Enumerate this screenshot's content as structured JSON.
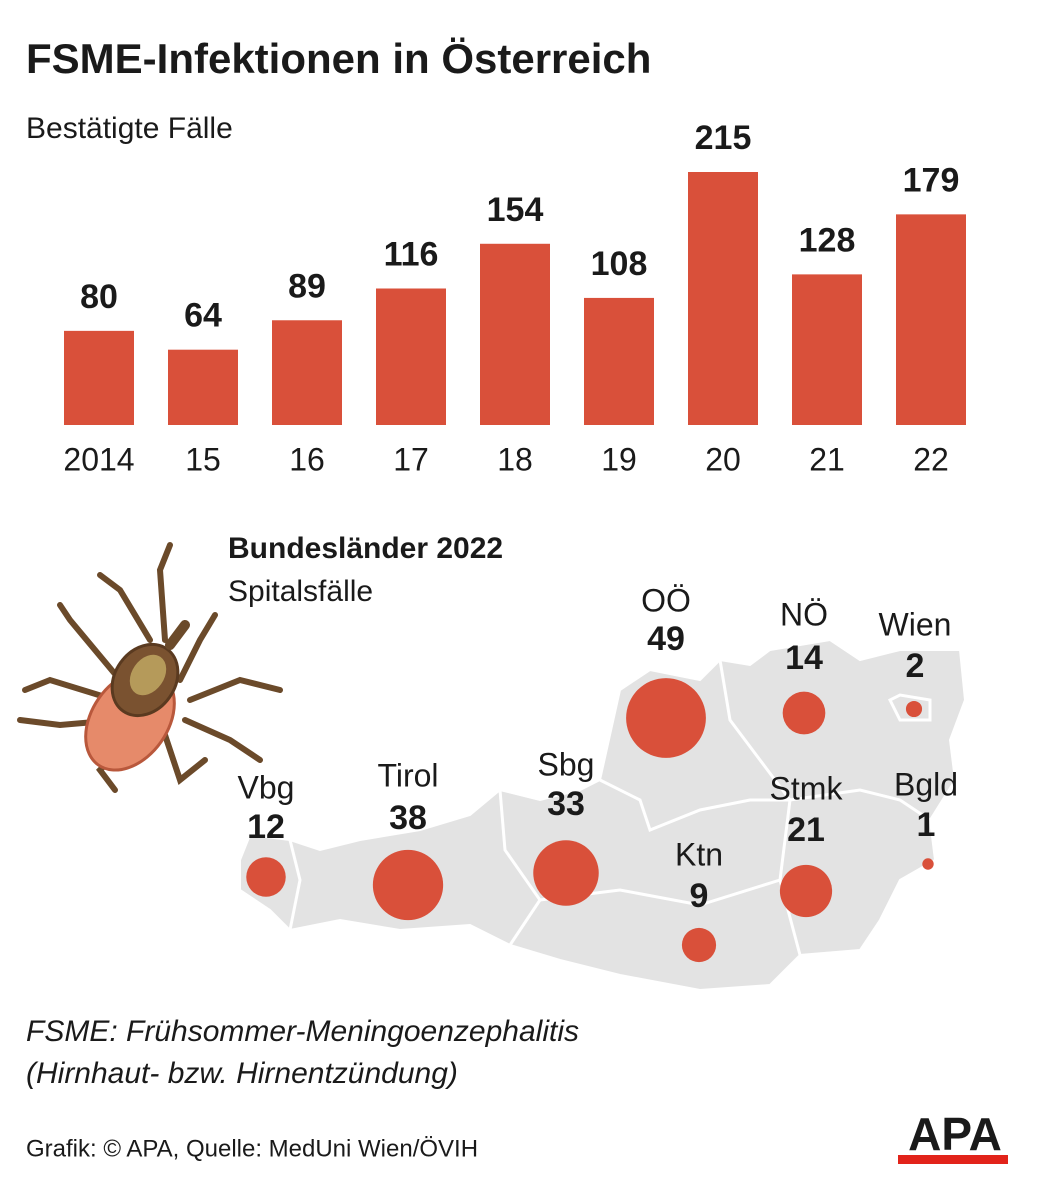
{
  "chart_data": [
    {
      "type": "bar",
      "title": "FSME-Infektionen in Österreich",
      "subtitle": "Bestätigte Fälle",
      "categories": [
        "2014",
        "15",
        "16",
        "17",
        "18",
        "19",
        "20",
        "21",
        "22"
      ],
      "values": [
        80,
        64,
        89,
        116,
        154,
        108,
        215,
        128,
        179
      ],
      "color": "#d9503a"
    },
    {
      "type": "bubble-map",
      "title": "Bundesländer 2022",
      "subtitle": "Spitalsfälle",
      "categories": [
        "Vbg",
        "Tirol",
        "Sbg",
        "OÖ",
        "NÖ",
        "Wien",
        "Stmk",
        "Bgld",
        "Ktn"
      ],
      "values": [
        12,
        38,
        33,
        49,
        14,
        2,
        21,
        1,
        9
      ],
      "color": "#d9503a"
    }
  ],
  "footnote": [
    "FSME: Frühsommer-Meningoenzephalitis",
    "(Hirnhaut- bzw. Hirnentzündung)"
  ],
  "source": "Grafik: © APA, Quelle: MedUni Wien/ÖVIH",
  "logo": "APA"
}
